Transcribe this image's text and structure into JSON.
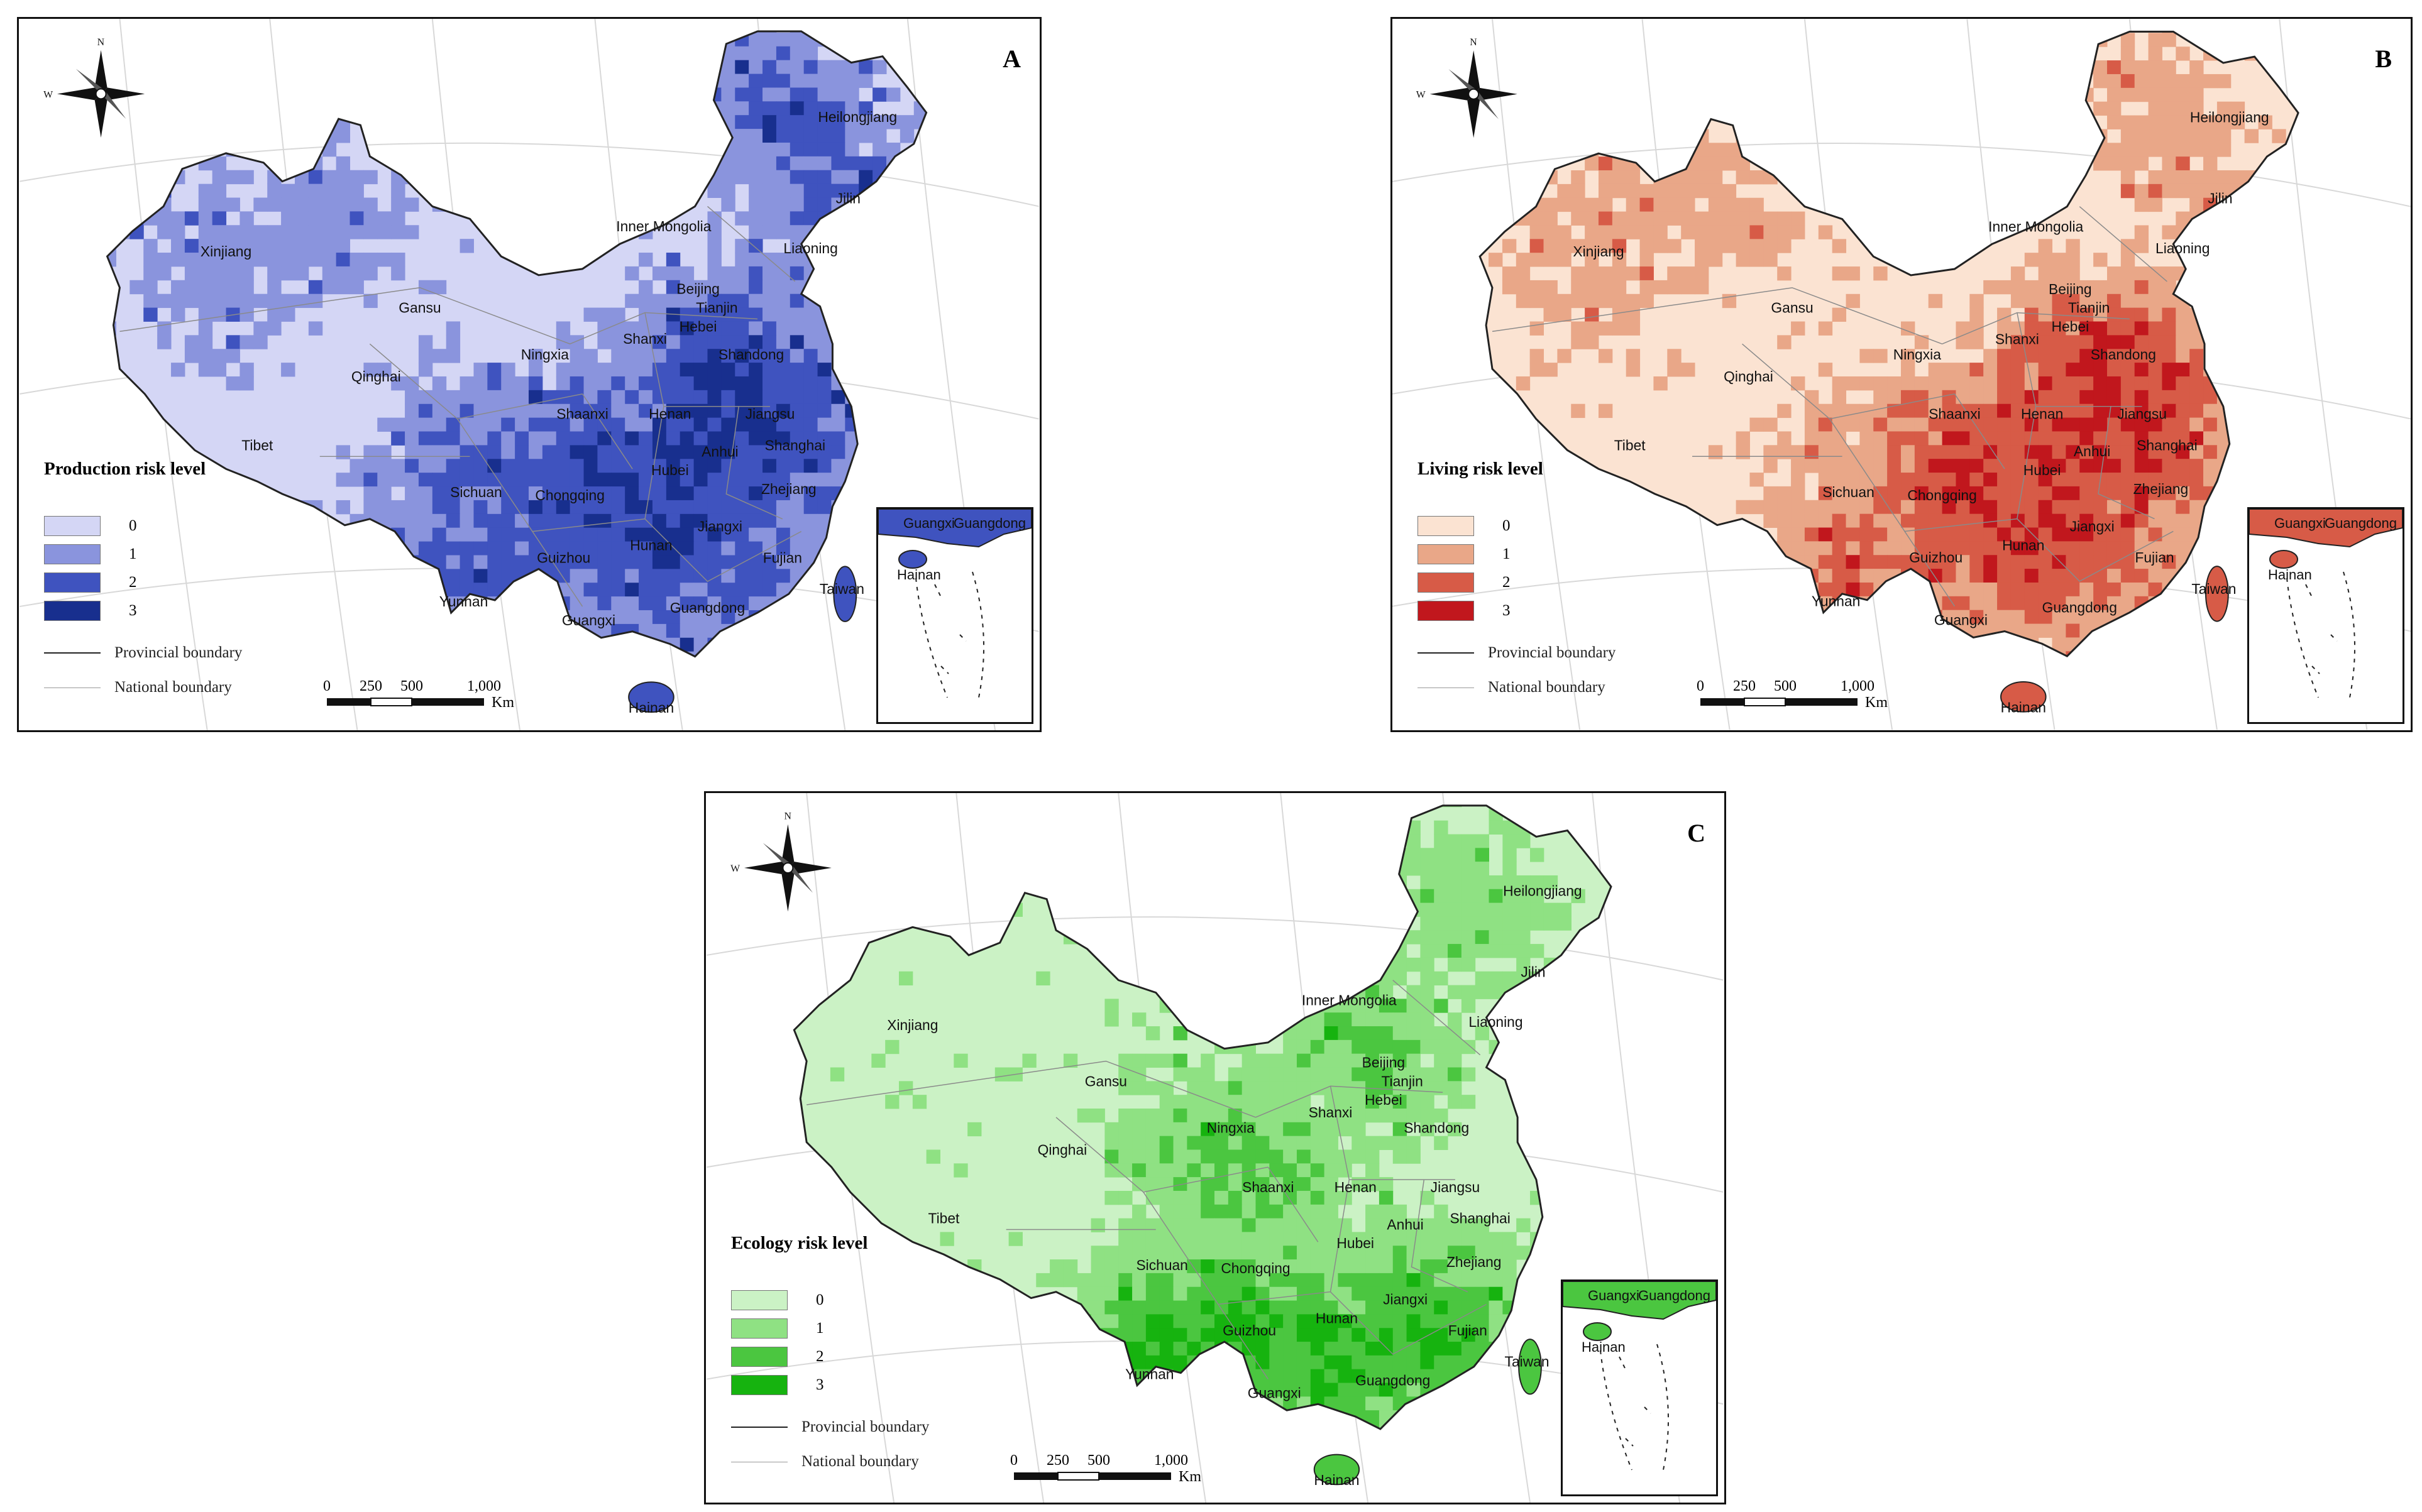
{
  "panels": [
    {
      "letter": "A",
      "legend_title": "Production risk level",
      "levels": [
        "0",
        "1",
        "2",
        "3"
      ],
      "colors": [
        "#d4d6f5",
        "#8a94dd",
        "#3f53bf",
        "#182f8e"
      ],
      "base": "#d4d6f5",
      "hotspots": [
        [
          "west",
          1
        ],
        [
          "ne",
          2
        ],
        [
          "east",
          3
        ],
        [
          "south",
          2
        ],
        [
          "sw",
          2
        ]
      ]
    },
    {
      "letter": "B",
      "legend_title": "Living risk level",
      "levels": [
        "0",
        "1",
        "2",
        "3"
      ],
      "colors": [
        "#fbe3d2",
        "#e9a788",
        "#d75b47",
        "#c1171d"
      ],
      "base": "#fbe3d2",
      "hotspots": [
        [
          "west",
          1
        ],
        [
          "ne",
          1
        ],
        [
          "east",
          3
        ],
        [
          "south",
          2
        ],
        [
          "sw",
          1
        ]
      ]
    },
    {
      "letter": "C",
      "legend_title": "Ecology risk level",
      "levels": [
        "0",
        "1",
        "2",
        "3"
      ],
      "colors": [
        "#cbf2c5",
        "#8fe183",
        "#4bc640",
        "#16b30f"
      ],
      "base": "#cbf2c5",
      "hotspots": [
        [
          "west",
          0
        ],
        [
          "ne",
          1
        ],
        [
          "north",
          2
        ],
        [
          "south",
          3
        ],
        [
          "sw",
          0
        ]
      ]
    }
  ],
  "provinces": [
    "Xinjiang",
    "Gansu",
    "Qinghai",
    "Tibet",
    "Inner Mongolia",
    "Heilongjiang",
    "Jilin",
    "Liaoning",
    "Beijing",
    "Tianjin",
    "Hebei",
    "Shanxi",
    "Shandong",
    "Ningxia",
    "Shaanxi",
    "Henan",
    "Jiangsu",
    "Shanghai",
    "Anhui",
    "Hubei",
    "Sichuan",
    "Chongqing",
    "Zhejiang",
    "Jiangxi",
    "Hunan",
    "Fujian",
    "Guizhou",
    "Yunnan",
    "Guangxi",
    "Guangdong",
    "Taiwan",
    "Hainan"
  ],
  "inset_labels": [
    "Guangxi",
    "Guangdong",
    "Hainan"
  ],
  "boundaries": {
    "provincial": "Provincial boundary",
    "national": "National boundary"
  },
  "scale": {
    "ticks": [
      "0",
      "250",
      "500",
      "1,000"
    ],
    "unit": "Km"
  },
  "compass": {
    "n": "N",
    "w": "W"
  }
}
